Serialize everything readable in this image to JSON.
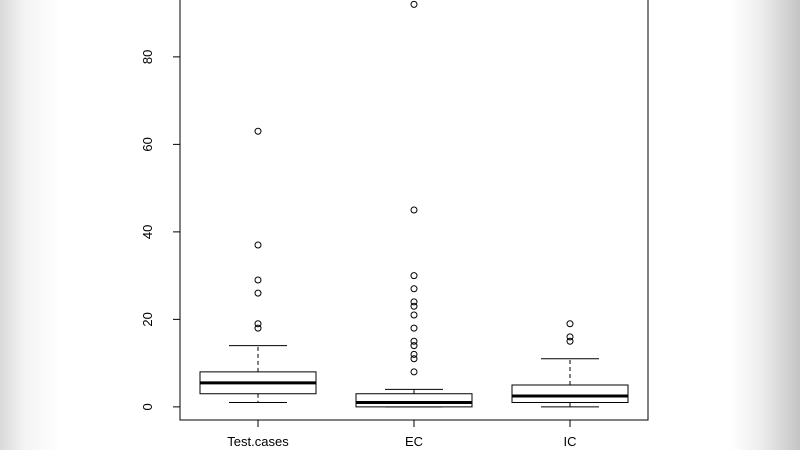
{
  "chart_data": {
    "type": "boxplot",
    "title": "",
    "xlabel": "",
    "ylabel": "",
    "ylim": [
      -3,
      93
    ],
    "yticks": [
      0,
      20,
      40,
      60,
      80
    ],
    "grid": false,
    "categories": [
      "Test.cases",
      "EC",
      "IC"
    ],
    "boxes": [
      {
        "category": "Test.cases",
        "whisker_low": 1,
        "q1": 3,
        "median": 5.5,
        "q3": 8,
        "whisker_high": 14,
        "outliers": [
          18,
          19,
          26,
          29,
          37,
          63
        ]
      },
      {
        "category": "EC",
        "whisker_low": 0,
        "q1": 0,
        "median": 1,
        "q3": 3,
        "whisker_high": 4,
        "outliers": [
          8,
          11,
          12,
          14,
          15,
          18,
          21,
          23,
          24,
          27,
          30,
          45,
          92
        ]
      },
      {
        "category": "IC",
        "whisker_low": 0,
        "q1": 1,
        "median": 2.5,
        "q3": 5,
        "whisker_high": 11,
        "outliers": [
          15,
          16,
          19
        ]
      }
    ]
  }
}
